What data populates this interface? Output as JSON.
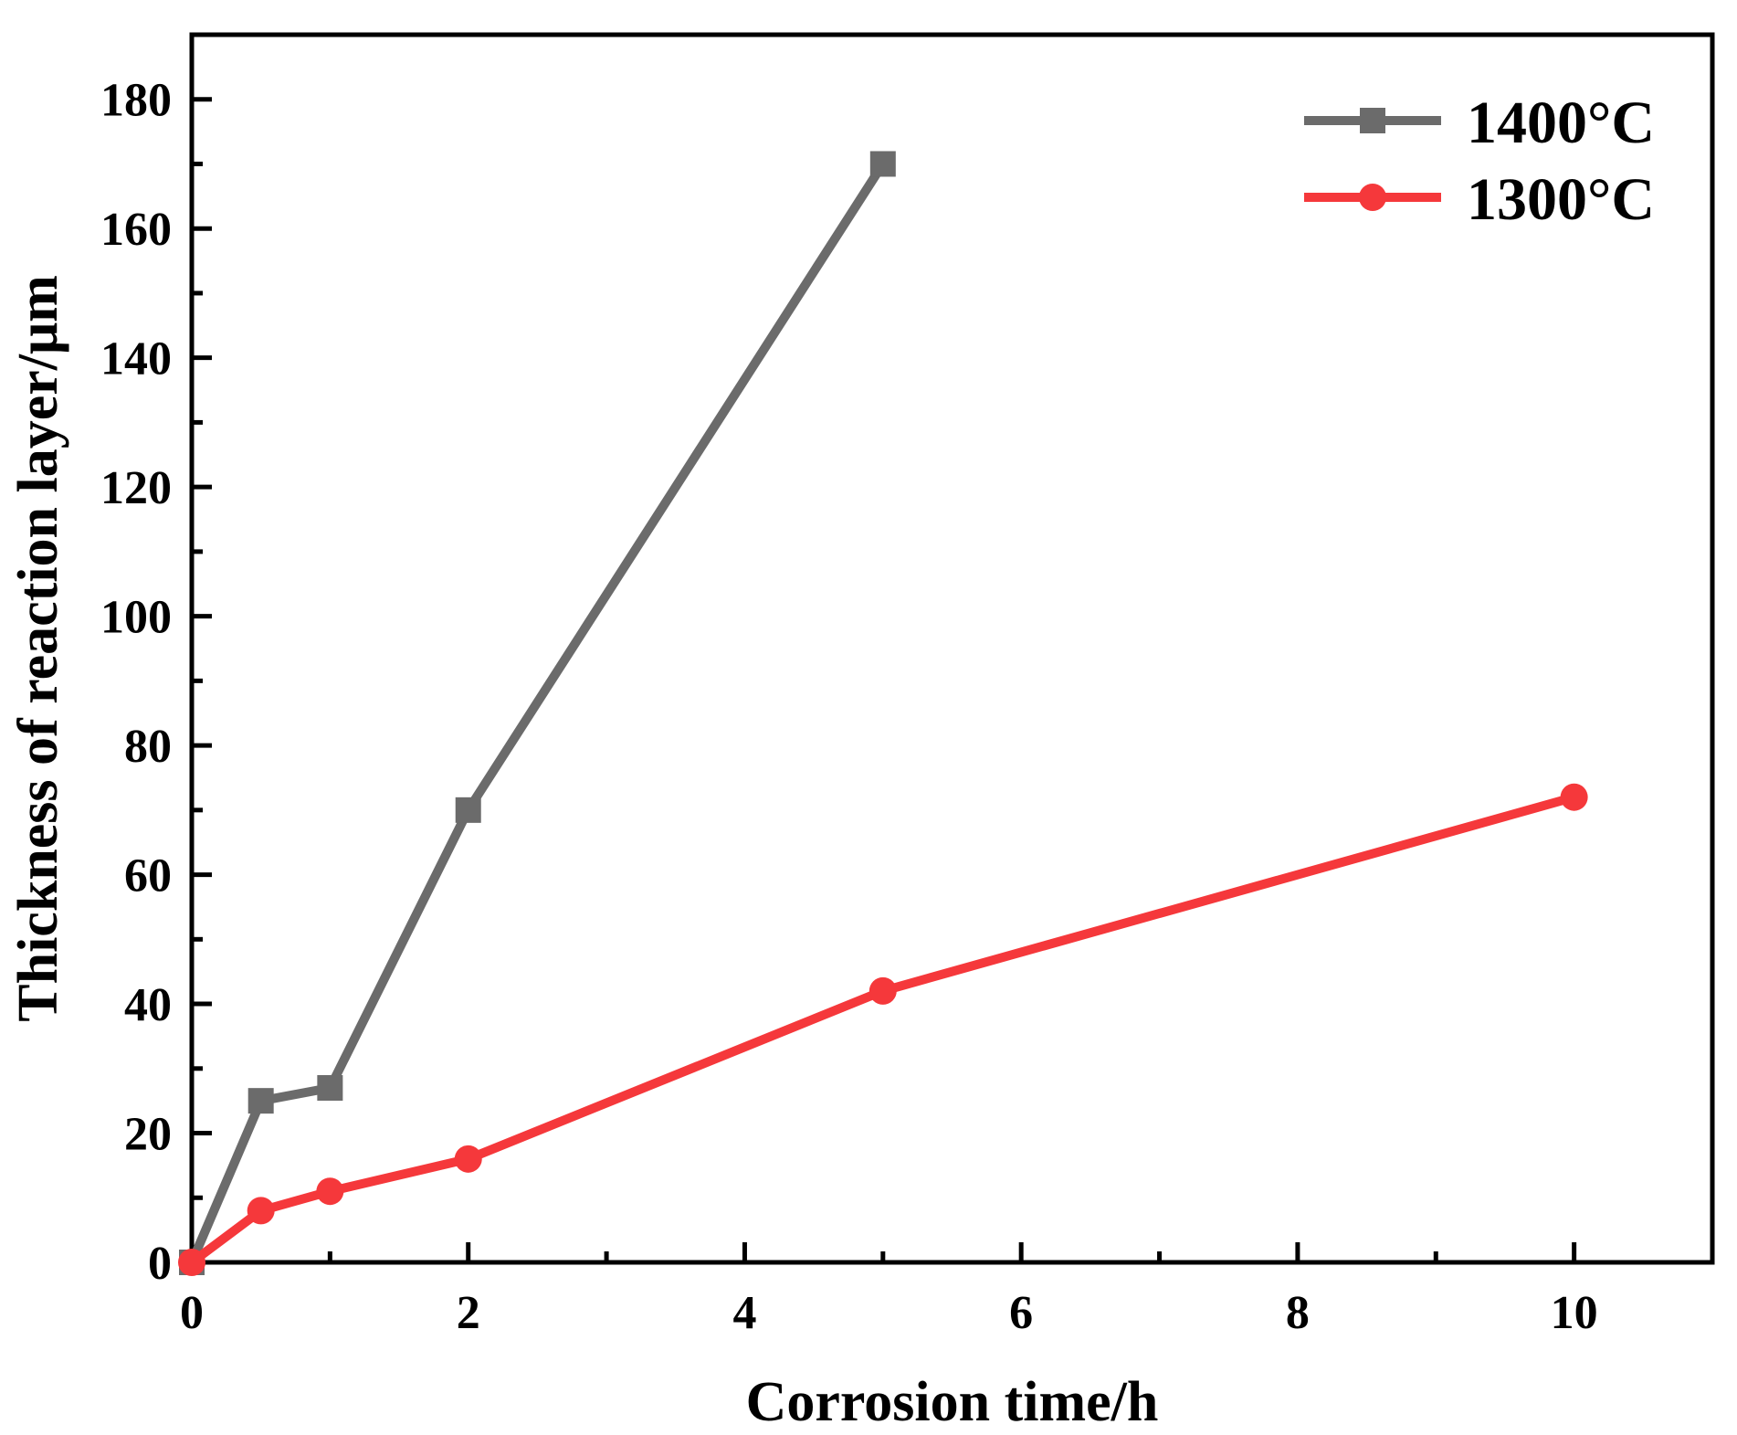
{
  "chart_data": {
    "type": "line",
    "title": "",
    "xlabel": "Corrosion time/h",
    "ylabel": "Thickness of reaction layer/μm",
    "xlim": [
      0,
      11
    ],
    "ylim": [
      0,
      190
    ],
    "xticks": [
      0,
      2,
      4,
      6,
      8,
      10
    ],
    "yticks": [
      0,
      20,
      40,
      60,
      80,
      100,
      120,
      140,
      160,
      180
    ],
    "xtick_labels": [
      "0",
      "2",
      "4",
      "6",
      "8",
      "10"
    ],
    "ytick_labels": [
      "0",
      "20",
      "40",
      "60",
      "80",
      "100",
      "120",
      "140",
      "160",
      "180"
    ],
    "grid": false,
    "legend_position": "top-right",
    "series": [
      {
        "name": "1400°C",
        "color": "#6b6b6b",
        "marker": "square",
        "x": [
          0,
          0.5,
          1,
          2,
          5
        ],
        "y": [
          0,
          25,
          27,
          70,
          170
        ]
      },
      {
        "name": "1300°C",
        "color": "#f5383b",
        "marker": "circle",
        "x": [
          0,
          0.5,
          1,
          2,
          5,
          10
        ],
        "y": [
          0,
          8,
          11,
          16,
          42,
          72
        ]
      }
    ]
  }
}
